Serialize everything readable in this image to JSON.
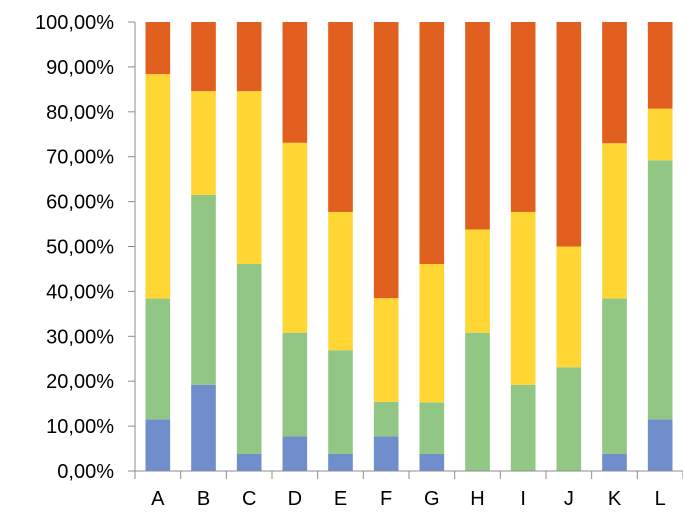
{
  "chart_data": {
    "type": "bar",
    "stacked": true,
    "percent_stacked": true,
    "categories": [
      "A",
      "B",
      "C",
      "D",
      "E",
      "F",
      "G",
      "H",
      "I",
      "J",
      "K",
      "L"
    ],
    "series": [
      {
        "color": "#6f8ecb",
        "values": [
          11.5,
          19.2,
          3.8,
          7.7,
          3.8,
          7.7,
          3.8,
          0,
          0,
          0,
          3.8,
          11.5
        ]
      },
      {
        "color": "#92c685",
        "values": [
          26.9,
          42.3,
          42.3,
          23.1,
          23.1,
          7.7,
          11.5,
          30.8,
          19.2,
          23.1,
          34.6,
          57.7
        ]
      },
      {
        "color": "#ffd633",
        "values": [
          50.0,
          23.1,
          38.5,
          42.3,
          30.8,
          23.1,
          30.8,
          23.0,
          38.5,
          26.9,
          34.6,
          11.5
        ]
      },
      {
        "color": "#e2601f",
        "values": [
          11.6,
          15.4,
          15.4,
          26.9,
          42.3,
          61.5,
          53.9,
          46.2,
          42.3,
          50.0,
          27.0,
          19.3
        ]
      }
    ],
    "y_ticks": [
      "0,00%",
      "10,00%",
      "20,00%",
      "30,00%",
      "40,00%",
      "50,00%",
      "60,00%",
      "70,00%",
      "80,00%",
      "90,00%",
      "100,00%"
    ],
    "ylim": [
      0,
      100
    ],
    "grid": false,
    "legend": "none",
    "axis_color": "#8c8c8c"
  }
}
